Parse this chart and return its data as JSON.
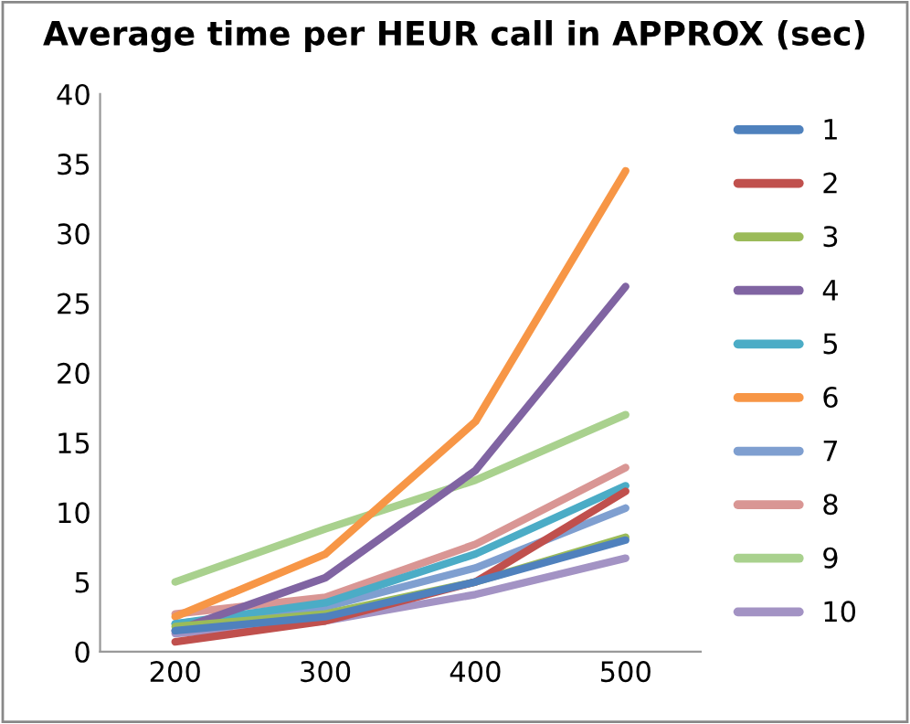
{
  "chart_data": {
    "type": "line",
    "title": "Average time per HEUR call in APPROX (sec)",
    "categories": [
      "200",
      "300",
      "400",
      "500"
    ],
    "ylim": [
      0,
      40
    ],
    "yticks": [
      0,
      5,
      10,
      15,
      20,
      25,
      30,
      35,
      40
    ],
    "grid": false,
    "legend": "right",
    "marker": "none",
    "line_style": "solid",
    "series": [
      {
        "name": "1",
        "color": "#4f81bd",
        "values": [
          1.5,
          2.5,
          5,
          8
        ]
      },
      {
        "name": "2",
        "color": "#c0504d",
        "values": [
          0.7,
          2.2,
          5,
          11.5
        ]
      },
      {
        "name": "3",
        "color": "#9bbb59",
        "values": [
          1.8,
          2.7,
          5,
          8.2
        ]
      },
      {
        "name": "4",
        "color": "#8064a2",
        "values": [
          1.5,
          5.3,
          13,
          26.2
        ]
      },
      {
        "name": "5",
        "color": "#4bacc6",
        "values": [
          2,
          3.5,
          7,
          11.9
        ]
      },
      {
        "name": "6",
        "color": "#f79646",
        "values": [
          2.5,
          7,
          16.5,
          34.5
        ]
      },
      {
        "name": "7",
        "color": "#7f9fd0",
        "values": [
          2,
          3.2,
          6,
          10.3
        ]
      },
      {
        "name": "8",
        "color": "#d99694",
        "values": [
          2.7,
          3.9,
          7.7,
          13.2
        ]
      },
      {
        "name": "9",
        "color": "#a9d18e",
        "values": [
          5,
          8.8,
          12.3,
          17
        ]
      },
      {
        "name": "10",
        "color": "#a393c4",
        "values": [
          1.3,
          2.2,
          4.1,
          6.7
        ]
      }
    ]
  }
}
